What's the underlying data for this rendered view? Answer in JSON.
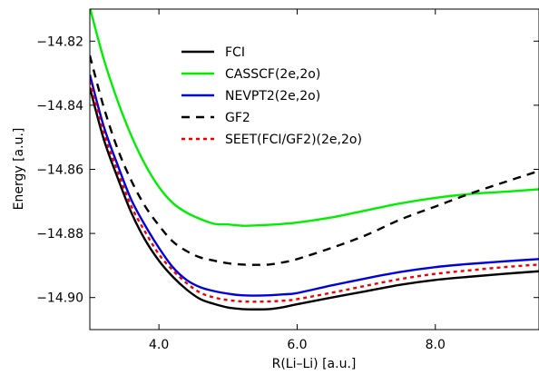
{
  "chart_data": {
    "type": "line",
    "xlabel": "R(Li–Li) [a.u.]",
    "ylabel": "Energy [a.u.]",
    "xlim": [
      3.0,
      9.5
    ],
    "ylim": [
      -14.91,
      -14.81
    ],
    "xticks": [
      4.0,
      6.0,
      8.0
    ],
    "xtick_labels": [
      "4.0",
      "6.0",
      "8.0"
    ],
    "yticks": [
      -14.82,
      -14.84,
      -14.86,
      -14.88,
      -14.9
    ],
    "ytick_labels": [
      "−14.82",
      "−14.84",
      "−14.86",
      "−14.88",
      "−14.90"
    ],
    "grid": false,
    "legend_position": "top-center",
    "series": [
      {
        "name": "FCI",
        "color": "#000000",
        "dash": "solid",
        "x": [
          3.0,
          3.2,
          3.4,
          3.6,
          3.8,
          4.0,
          4.2,
          4.4,
          4.6,
          4.8,
          5.0,
          5.2,
          5.4,
          5.6,
          5.8,
          6.0,
          6.5,
          7.0,
          7.5,
          8.0,
          8.5,
          9.0,
          9.5
        ],
        "y": [
          -14.8345,
          -14.8505,
          -14.8625,
          -14.8735,
          -14.882,
          -14.8885,
          -14.8935,
          -14.8975,
          -14.9005,
          -14.902,
          -14.9031,
          -14.9036,
          -14.9037,
          -14.9036,
          -14.903,
          -14.9021,
          -14.9,
          -14.898,
          -14.896,
          -14.8945,
          -14.8935,
          -14.8926,
          -14.8918
        ]
      },
      {
        "name": "CASSCF(2e,2o)",
        "color": "#00ee00",
        "dash": "solid",
        "x": [
          3.0,
          3.2,
          3.4,
          3.6,
          3.8,
          4.0,
          4.2,
          4.4,
          4.6,
          4.8,
          5.0,
          5.2,
          5.4,
          5.6,
          5.8,
          6.0,
          6.5,
          7.0,
          7.5,
          8.0,
          8.5,
          9.0,
          9.5
        ],
        "y": [
          -14.8095,
          -14.8255,
          -14.8385,
          -14.8495,
          -14.8585,
          -14.8655,
          -14.8705,
          -14.8735,
          -14.8755,
          -14.877,
          -14.8772,
          -14.8776,
          -14.8775,
          -14.8773,
          -14.877,
          -14.8766,
          -14.875,
          -14.8728,
          -14.8706,
          -14.8689,
          -14.8677,
          -14.867,
          -14.8662
        ]
      },
      {
        "name": "NEVPT2(2e,2o)",
        "color": "#0000dd",
        "dash": "solid",
        "x": [
          3.0,
          3.2,
          3.4,
          3.6,
          3.8,
          4.0,
          4.2,
          4.4,
          4.6,
          4.8,
          5.0,
          5.2,
          5.4,
          5.6,
          5.8,
          6.0,
          6.5,
          7.0,
          7.5,
          8.0,
          8.5,
          9.0,
          9.5
        ],
        "y": [
          -14.8305,
          -14.8465,
          -14.8585,
          -14.8695,
          -14.8775,
          -14.8845,
          -14.8905,
          -14.8945,
          -14.8968,
          -14.898,
          -14.8988,
          -14.8993,
          -14.8994,
          -14.8993,
          -14.899,
          -14.8986,
          -14.8962,
          -14.894,
          -14.892,
          -14.8905,
          -14.8895,
          -14.8887,
          -14.888
        ]
      },
      {
        "name": "GF2",
        "color": "#000000",
        "dash": "dashed",
        "x": [
          3.0,
          3.2,
          3.4,
          3.6,
          3.8,
          4.0,
          4.2,
          4.4,
          4.6,
          4.8,
          5.0,
          5.2,
          5.4,
          5.6,
          5.8,
          6.0,
          6.5,
          7.0,
          7.5,
          8.0,
          8.5,
          9.0,
          9.5
        ],
        "y": [
          -14.8245,
          -14.8405,
          -14.8535,
          -14.8635,
          -14.8715,
          -14.8775,
          -14.8825,
          -14.8855,
          -14.8875,
          -14.8885,
          -14.8893,
          -14.8897,
          -14.8898,
          -14.8897,
          -14.889,
          -14.888,
          -14.8845,
          -14.8805,
          -14.8756,
          -14.8716,
          -14.8676,
          -14.864,
          -14.8605
        ]
      },
      {
        "name": "SEET(FCI/GF2)(2e,2o)",
        "color": "#ee0000",
        "dash": "dotted",
        "x": [
          3.0,
          3.2,
          3.4,
          3.6,
          3.8,
          4.0,
          4.2,
          4.4,
          4.6,
          4.8,
          5.0,
          5.2,
          5.4,
          5.6,
          5.8,
          6.0,
          6.5,
          7.0,
          7.5,
          8.0,
          8.5,
          9.0,
          9.5
        ],
        "y": [
          -14.8325,
          -14.8485,
          -14.8605,
          -14.8715,
          -14.8795,
          -14.8865,
          -14.8915,
          -14.8955,
          -14.8985,
          -14.9,
          -14.9008,
          -14.9012,
          -14.9013,
          -14.9012,
          -14.901,
          -14.9005,
          -14.8985,
          -14.8963,
          -14.8942,
          -14.8926,
          -14.8915,
          -14.8905,
          -14.8897
        ]
      }
    ]
  }
}
